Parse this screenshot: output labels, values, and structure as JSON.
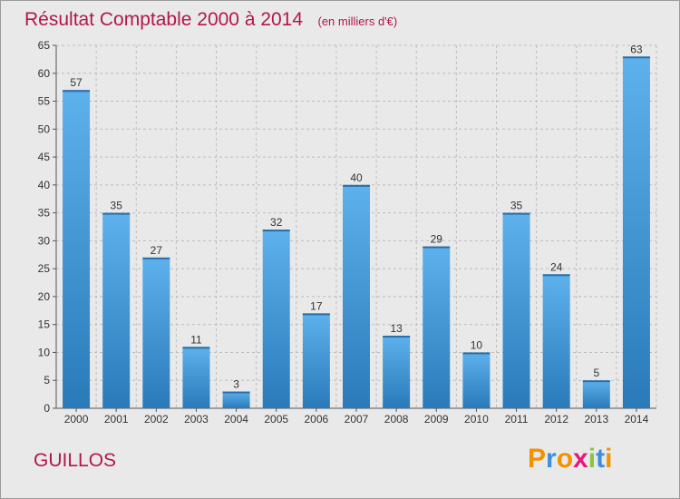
{
  "chart_data": {
    "type": "bar",
    "title": "Résultat Comptable 2000 à 2014",
    "subtitle": "(en milliers d'€)",
    "categories": [
      "2000",
      "2001",
      "2002",
      "2003",
      "2004",
      "2005",
      "2006",
      "2007",
      "2008",
      "2009",
      "2010",
      "2011",
      "2012",
      "2013",
      "2014"
    ],
    "values": [
      57,
      35,
      27,
      11,
      3,
      32,
      17,
      40,
      13,
      29,
      10,
      35,
      24,
      5,
      63
    ],
    "data_labels": [
      "57",
      "35",
      "27",
      "11",
      "3",
      "32",
      "17",
      "40",
      "13",
      "29",
      "10",
      "35",
      "24",
      "5",
      "63"
    ],
    "ylim": [
      0,
      65
    ],
    "yticks": [
      0,
      5,
      10,
      15,
      20,
      25,
      30,
      35,
      40,
      45,
      50,
      55,
      60,
      65
    ],
    "xlabel": "",
    "ylabel": "",
    "grid": true,
    "legend": "none"
  },
  "commune": "GUILLOS",
  "brand": {
    "letters": [
      "P",
      "r",
      "o",
      "x",
      "i",
      "t",
      "i"
    ],
    "colors": [
      "#f39200",
      "#3c8dde",
      "#f39200",
      "#e4197b",
      "#8bc43f",
      "#3c8dde",
      "#f39200"
    ]
  },
  "colors": {
    "accent": "#b2174a",
    "bar_light": "#5db1ec",
    "bar_dark": "#2a7ab9",
    "plot_bg": "#e9e9e9",
    "grid": "#bdbdbd"
  }
}
